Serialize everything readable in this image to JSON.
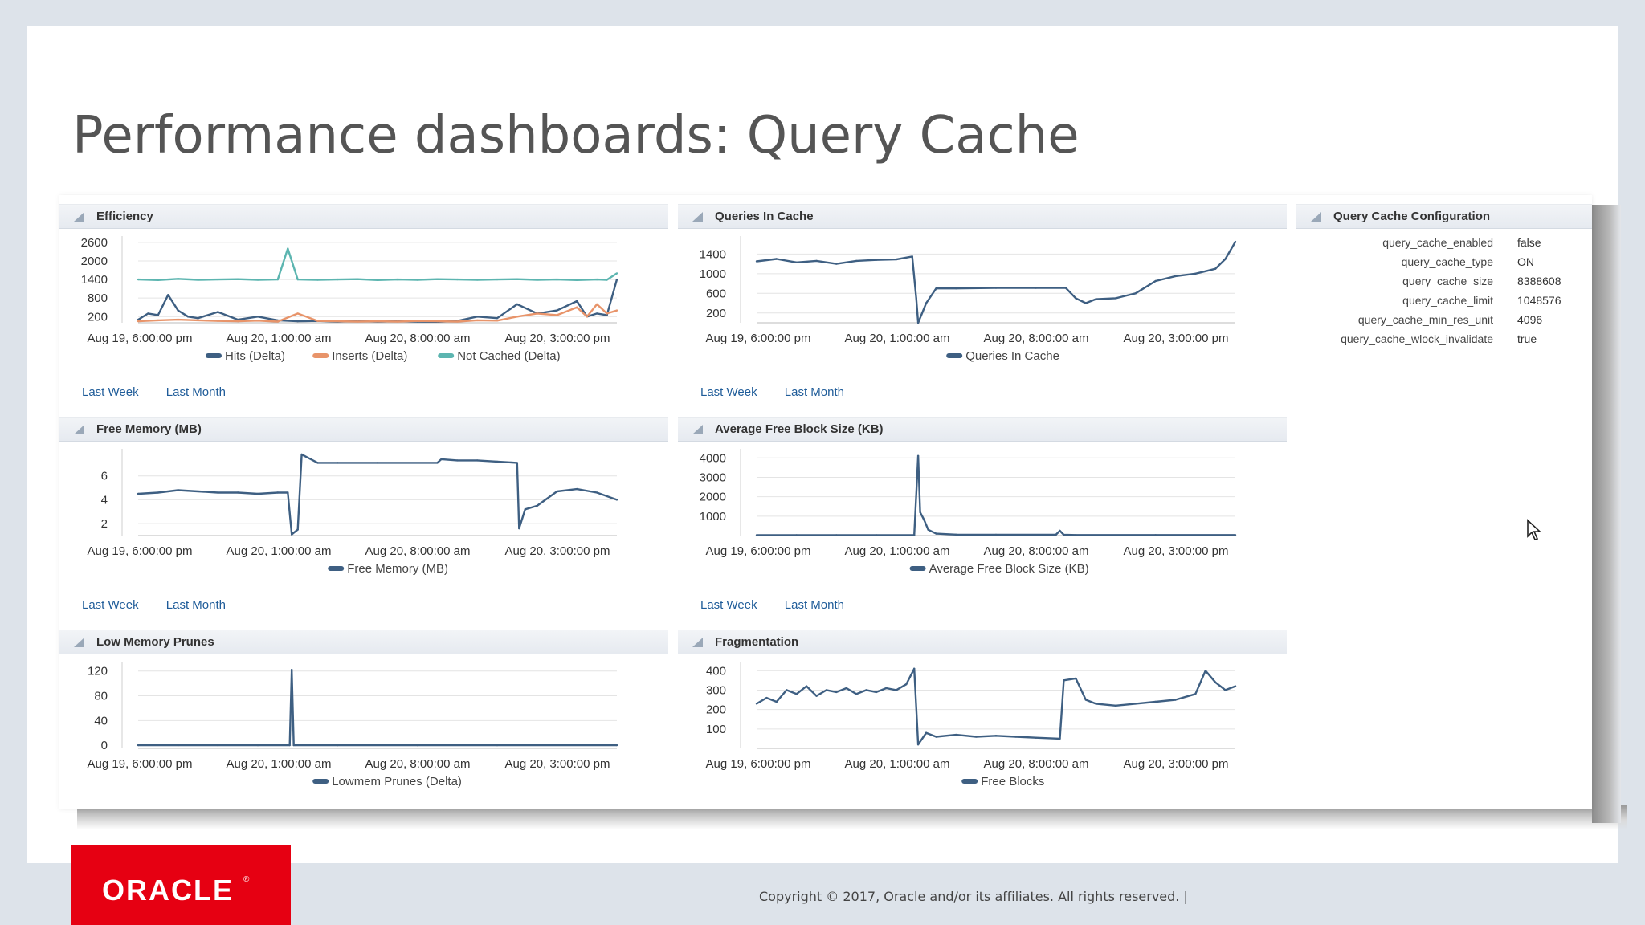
{
  "slide": {
    "title": "Performance dashboards: Query Cache",
    "copyright": "Copyright © 2017, Oracle and/or its affiliates. All rights reserved.  |",
    "logo_text": "ORACLE"
  },
  "colors": {
    "hits": "#3e5f82",
    "inserts": "#e8946a",
    "not_cached": "#5cb5b0",
    "series": "#3e5f82",
    "link": "#1f5c99",
    "oracle_red": "#e60012"
  },
  "panels": {
    "efficiency": {
      "title": "Efficiency",
      "links": [
        "Last Week",
        "Last Month"
      ]
    },
    "queries_in_cache": {
      "title": "Queries In Cache",
      "links": [
        "Last Week",
        "Last Month"
      ]
    },
    "free_memory": {
      "title": "Free Memory (MB)",
      "links": [
        "Last Week",
        "Last Month"
      ]
    },
    "avg_free_block": {
      "title": "Average Free Block Size (KB)",
      "links": [
        "Last Week",
        "Last Month"
      ]
    },
    "low_memory_prunes": {
      "title": "Low Memory Prunes"
    },
    "fragmentation": {
      "title": "Fragmentation"
    },
    "config": {
      "title": "Query Cache Configuration",
      "rows": [
        {
          "key": "query_cache_enabled",
          "value": "false"
        },
        {
          "key": "query_cache_type",
          "value": "ON"
        },
        {
          "key": "query_cache_size",
          "value": "8388608"
        },
        {
          "key": "query_cache_limit",
          "value": "1048576"
        },
        {
          "key": "query_cache_min_res_unit",
          "value": "4096"
        },
        {
          "key": "query_cache_wlock_invalidate",
          "value": "true"
        }
      ]
    }
  },
  "chart_data": [
    {
      "id": "efficiency",
      "type": "line",
      "x_ticks": [
        "Aug 19, 6:00:00 pm",
        "Aug 20, 1:00:00 am",
        "Aug 20, 8:00:00 am",
        "Aug 20, 3:00:00 pm"
      ],
      "y_ticks": [
        200,
        800,
        1400,
        2000,
        2600
      ],
      "ylim": [
        0,
        2700
      ],
      "x_range": [
        0,
        24
      ],
      "series": [
        {
          "name": "Hits (Delta)",
          "color": "#3e5f82",
          "x": [
            0,
            0.5,
            1,
            1.5,
            2,
            2.5,
            3,
            4,
            5,
            6,
            7,
            8,
            9,
            10,
            11,
            12,
            13,
            14,
            15,
            16,
            17,
            18,
            19,
            20,
            21,
            22,
            22.5,
            23,
            23.5,
            24
          ],
          "y": [
            100,
            300,
            250,
            900,
            400,
            200,
            150,
            350,
            100,
            200,
            80,
            50,
            60,
            40,
            60,
            40,
            50,
            40,
            30,
            60,
            200,
            150,
            600,
            300,
            400,
            700,
            200,
            300,
            250,
            1400
          ]
        },
        {
          "name": "Inserts (Delta)",
          "color": "#e8946a",
          "x": [
            0,
            1,
            2,
            3,
            4,
            5,
            6,
            7,
            8,
            9,
            10,
            11,
            12,
            13,
            14,
            15,
            16,
            17,
            18,
            19,
            20,
            21,
            22,
            22.5,
            23,
            23.5,
            24
          ],
          "y": [
            50,
            80,
            100,
            80,
            60,
            50,
            70,
            40,
            300,
            60,
            50,
            40,
            50,
            40,
            60,
            50,
            40,
            80,
            70,
            200,
            300,
            250,
            500,
            200,
            600,
            300,
            400
          ]
        },
        {
          "name": "Not Cached (Delta)",
          "color": "#5cb5b0",
          "x": [
            0,
            1,
            2,
            3,
            4,
            5,
            6,
            7,
            7.5,
            8,
            9,
            10,
            11,
            12,
            13,
            14,
            15,
            16,
            17,
            18,
            19,
            20,
            21,
            22,
            23,
            23.5,
            24
          ],
          "y": [
            1400,
            1380,
            1420,
            1390,
            1400,
            1410,
            1390,
            1400,
            2400,
            1400,
            1390,
            1400,
            1410,
            1380,
            1400,
            1390,
            1410,
            1400,
            1390,
            1400,
            1410,
            1390,
            1400,
            1380,
            1400,
            1390,
            1600
          ]
        }
      ]
    },
    {
      "id": "queries_in_cache",
      "type": "line",
      "x_ticks": [
        "Aug 19, 6:00:00 pm",
        "Aug 20, 1:00:00 am",
        "Aug 20, 8:00:00 am",
        "Aug 20, 3:00:00 pm"
      ],
      "y_ticks": [
        200,
        600,
        1000,
        1400
      ],
      "ylim": [
        0,
        1700
      ],
      "x_range": [
        0,
        24
      ],
      "series": [
        {
          "name": "Queries In Cache",
          "color": "#3e5f82",
          "x": [
            0,
            1,
            2,
            3,
            4,
            5,
            6,
            7,
            7.8,
            8,
            8.1,
            8.5,
            9,
            10,
            12,
            14,
            15.5,
            16,
            16.5,
            17,
            18,
            19,
            20,
            21,
            22,
            22.5,
            23,
            23.5,
            24
          ],
          "y": [
            1250,
            1300,
            1230,
            1260,
            1200,
            1260,
            1280,
            1290,
            1350,
            500,
            0,
            400,
            700,
            700,
            710,
            710,
            710,
            500,
            400,
            480,
            500,
            600,
            850,
            950,
            1000,
            1050,
            1100,
            1300,
            1650
          ]
        }
      ]
    },
    {
      "id": "free_memory",
      "type": "line",
      "x_ticks": [
        "Aug 19, 6:00:00 pm",
        "Aug 20, 1:00:00 am",
        "Aug 20, 8:00:00 am",
        "Aug 20, 3:00:00 pm"
      ],
      "y_ticks": [
        2,
        4,
        6
      ],
      "ylim": [
        1,
        8
      ],
      "x_range": [
        0,
        24
      ],
      "series": [
        {
          "name": "Free Memory (MB)",
          "color": "#3e5f82",
          "x": [
            0,
            1,
            2,
            3,
            4,
            5,
            6,
            7,
            7.5,
            7.7,
            8,
            8.2,
            9,
            10,
            12,
            15,
            15.2,
            16,
            17,
            18,
            19,
            19.1,
            19.4,
            20,
            21,
            22,
            23,
            24
          ],
          "y": [
            4.5,
            4.6,
            4.8,
            4.7,
            4.6,
            4.6,
            4.5,
            4.6,
            4.6,
            1.1,
            1.5,
            7.8,
            7.1,
            7.1,
            7.1,
            7.1,
            7.4,
            7.3,
            7.3,
            7.2,
            7.1,
            1.6,
            3.2,
            3.5,
            4.7,
            4.9,
            4.6,
            4.0
          ]
        }
      ]
    },
    {
      "id": "avg_free_block",
      "type": "line",
      "x_ticks": [
        "Aug 19, 6:00:00 pm",
        "Aug 20, 1:00:00 am",
        "Aug 20, 8:00:00 am",
        "Aug 20, 3:00:00 pm"
      ],
      "y_ticks": [
        1000,
        2000,
        3000,
        4000
      ],
      "ylim": [
        0,
        4300
      ],
      "x_range": [
        0,
        24
      ],
      "series": [
        {
          "name": "Average Free Block Size (KB)",
          "color": "#3e5f82",
          "x": [
            0,
            2,
            4,
            6,
            7.9,
            8.1,
            8.2,
            8.4,
            8.6,
            9,
            10,
            12,
            15,
            15.2,
            15.4,
            16,
            20,
            24
          ],
          "y": [
            20,
            20,
            20,
            20,
            20,
            4100,
            1200,
            800,
            300,
            100,
            50,
            40,
            40,
            250,
            40,
            30,
            30,
            30
          ]
        }
      ]
    },
    {
      "id": "low_memory_prunes",
      "type": "line",
      "x_ticks": [
        "Aug 19, 6:00:00 pm",
        "Aug 20, 1:00:00 am",
        "Aug 20, 8:00:00 am",
        "Aug 20, 3:00:00 pm"
      ],
      "y_ticks": [
        0,
        40,
        80,
        120
      ],
      "ylim": [
        -5,
        130
      ],
      "x_range": [
        0,
        24
      ],
      "series": [
        {
          "name": "Lowmem Prunes (Delta)",
          "color": "#3e5f82",
          "x": [
            0,
            2,
            4,
            6,
            7.6,
            7.7,
            7.8,
            7.9,
            10,
            14,
            18,
            24
          ],
          "y": [
            0,
            0,
            0,
            0,
            0,
            122,
            0,
            0,
            0,
            0,
            0,
            0
          ]
        }
      ]
    },
    {
      "id": "fragmentation",
      "type": "line",
      "x_ticks": [
        "Aug 19, 6:00:00 pm",
        "Aug 20, 1:00:00 am",
        "Aug 20, 8:00:00 am",
        "Aug 20, 3:00:00 pm"
      ],
      "y_ticks": [
        100,
        200,
        300,
        400
      ],
      "ylim": [
        0,
        430
      ],
      "x_range": [
        0,
        24
      ],
      "series": [
        {
          "name": "Free Blocks",
          "color": "#3e5f82",
          "x": [
            0,
            0.5,
            1,
            1.5,
            2,
            2.5,
            3,
            3.5,
            4,
            4.5,
            5,
            5.5,
            6,
            6.5,
            7,
            7.5,
            7.9,
            8.1,
            8.5,
            9,
            10,
            11,
            12,
            13,
            14,
            15.2,
            15.4,
            16,
            16.5,
            17,
            18,
            19,
            20,
            21,
            22,
            22.5,
            23,
            23.5,
            24
          ],
          "y": [
            230,
            260,
            240,
            300,
            280,
            320,
            270,
            300,
            290,
            310,
            280,
            300,
            290,
            310,
            300,
            330,
            410,
            20,
            80,
            60,
            70,
            60,
            65,
            60,
            55,
            50,
            350,
            360,
            250,
            230,
            220,
            230,
            240,
            250,
            280,
            400,
            340,
            300,
            320
          ]
        }
      ]
    }
  ]
}
